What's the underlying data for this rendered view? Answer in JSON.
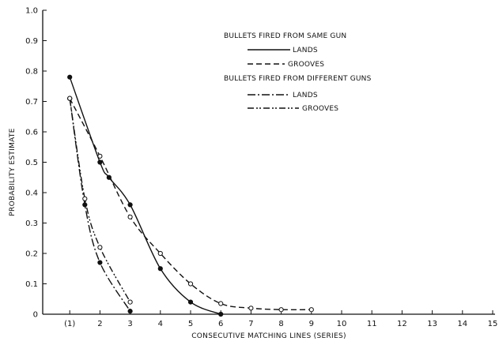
{
  "chart_data": {
    "type": "line",
    "xlabel": "CONSECUTIVE MATCHING LINES (SERIES)",
    "ylabel": "PROBABILITY ESTIMATE",
    "xlim": [
      0,
      15
    ],
    "ylim": [
      0,
      1.0
    ],
    "x_ticks": [
      {
        "value": 1,
        "label": "(1)"
      },
      {
        "value": 2,
        "label": "2"
      },
      {
        "value": 3,
        "label": "3"
      },
      {
        "value": 4,
        "label": "4"
      },
      {
        "value": 5,
        "label": "5"
      },
      {
        "value": 6,
        "label": "6"
      },
      {
        "value": 7,
        "label": "7"
      },
      {
        "value": 8,
        "label": "8"
      },
      {
        "value": 9,
        "label": "9"
      },
      {
        "value": 10,
        "label": "10"
      },
      {
        "value": 11,
        "label": "11"
      },
      {
        "value": 12,
        "label": "12"
      },
      {
        "value": 13,
        "label": "13"
      },
      {
        "value": 14,
        "label": "14"
      },
      {
        "value": 15,
        "label": "15"
      }
    ],
    "y_ticks": [
      {
        "value": 0,
        "label": "0"
      },
      {
        "value": 0.1,
        "label": "0.1"
      },
      {
        "value": 0.2,
        "label": "0.2"
      },
      {
        "value": 0.3,
        "label": "0.3"
      },
      {
        "value": 0.4,
        "label": "0.4"
      },
      {
        "value": 0.5,
        "label": "0.5"
      },
      {
        "value": 0.6,
        "label": "0.6"
      },
      {
        "value": 0.7,
        "label": "0.7"
      },
      {
        "value": 0.8,
        "label": "0.8"
      },
      {
        "value": 0.9,
        "label": "0.9"
      },
      {
        "value": 1.0,
        "label": "1.0"
      }
    ],
    "legend": {
      "placement": "top-right",
      "group1_header": "BULLETS FIRED FROM SAME GUN",
      "group2_header": "BULLETS FIRED FROM DIFFERENT GUNS"
    },
    "series": [
      {
        "name": "LANDS",
        "group": "BULLETS FIRED FROM SAME GUN",
        "dash": "solid",
        "marker": "filled",
        "x": [
          1,
          2,
          2.3,
          3,
          4,
          5,
          6
        ],
        "y": [
          0.78,
          0.5,
          0.45,
          0.36,
          0.15,
          0.04,
          0.0
        ]
      },
      {
        "name": "GROOVES",
        "group": "BULLETS FIRED FROM SAME GUN",
        "dash": "dashed",
        "marker": "open",
        "x": [
          1,
          2,
          3,
          4,
          5,
          6,
          7,
          8,
          9
        ],
        "y": [
          0.71,
          0.52,
          0.32,
          0.2,
          0.1,
          0.035,
          0.02,
          0.015,
          0.015
        ]
      },
      {
        "name": "LANDS",
        "group": "BULLETS FIRED FROM DIFFERENT GUNS",
        "dash": "dash-dot",
        "marker": "filled",
        "x": [
          1,
          1.5,
          2,
          3
        ],
        "y": [
          0.71,
          0.36,
          0.17,
          0.01
        ]
      },
      {
        "name": "GROOVES",
        "group": "BULLETS FIRED FROM DIFFERENT GUNS",
        "dash": "dash-dot-dot",
        "marker": "open",
        "x": [
          1,
          1.5,
          2,
          3
        ],
        "y": [
          0.71,
          0.38,
          0.22,
          0.04
        ]
      }
    ]
  }
}
